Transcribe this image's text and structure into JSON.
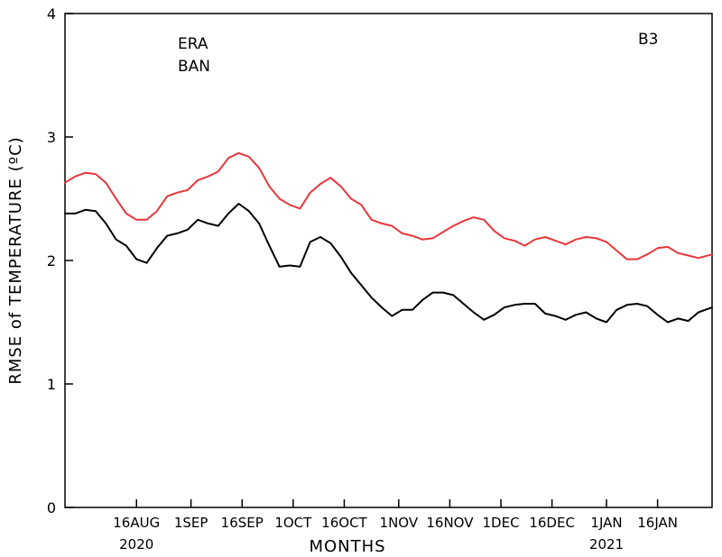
{
  "chart_data": {
    "type": "line",
    "xlabel": "MONTHS",
    "ylabel": "RMSE of TEMPERATURE (ºC)",
    "panel_label": "B3",
    "ylim": [
      0,
      4
    ],
    "yticks": [
      0,
      1,
      2,
      3,
      4
    ],
    "xlim": [
      "2020-07-26",
      "2021-02-01"
    ],
    "xticks": [
      {
        "date": "2020-08-16",
        "label": "16AUG",
        "sublabel": "2020"
      },
      {
        "date": "2020-09-01",
        "label": "1SEP",
        "sublabel": ""
      },
      {
        "date": "2020-09-16",
        "label": "16SEP",
        "sublabel": ""
      },
      {
        "date": "2020-10-01",
        "label": "1OCT",
        "sublabel": ""
      },
      {
        "date": "2020-10-16",
        "label": "16OCT",
        "sublabel": ""
      },
      {
        "date": "2020-11-01",
        "label": "1NOV",
        "sublabel": ""
      },
      {
        "date": "2020-11-16",
        "label": "16NOV",
        "sublabel": ""
      },
      {
        "date": "2020-12-01",
        "label": "1DEC",
        "sublabel": ""
      },
      {
        "date": "2020-12-16",
        "label": "16DEC",
        "sublabel": ""
      },
      {
        "date": "2021-01-01",
        "label": "1JAN",
        "sublabel": "2021"
      },
      {
        "date": "2021-01-16",
        "label": "16JAN",
        "sublabel": ""
      }
    ],
    "grid": false,
    "legend_position": "top-left",
    "series": [
      {
        "name": "ERA",
        "color": "#000000",
        "x": [
          "2020-07-26",
          "2020-07-29",
          "2020-08-01",
          "2020-08-04",
          "2020-08-07",
          "2020-08-10",
          "2020-08-13",
          "2020-08-16",
          "2020-08-19",
          "2020-08-22",
          "2020-08-25",
          "2020-08-28",
          "2020-08-31",
          "2020-09-03",
          "2020-09-06",
          "2020-09-09",
          "2020-09-12",
          "2020-09-15",
          "2020-09-18",
          "2020-09-21",
          "2020-09-24",
          "2020-09-27",
          "2020-09-30",
          "2020-10-03",
          "2020-10-06",
          "2020-10-09",
          "2020-10-12",
          "2020-10-15",
          "2020-10-18",
          "2020-10-21",
          "2020-10-24",
          "2020-10-27",
          "2020-10-30",
          "2020-11-02",
          "2020-11-05",
          "2020-11-08",
          "2020-11-11",
          "2020-11-14",
          "2020-11-17",
          "2020-11-20",
          "2020-11-23",
          "2020-11-26",
          "2020-11-29",
          "2020-12-02",
          "2020-12-05",
          "2020-12-08",
          "2020-12-11",
          "2020-12-14",
          "2020-12-17",
          "2020-12-20",
          "2020-12-23",
          "2020-12-26",
          "2020-12-29",
          "2021-01-01",
          "2021-01-04",
          "2021-01-07",
          "2021-01-10",
          "2021-01-13",
          "2021-01-16",
          "2021-01-19",
          "2021-01-22",
          "2021-01-25",
          "2021-01-28",
          "2021-02-01"
        ],
        "values": [
          2.38,
          2.38,
          2.41,
          2.4,
          2.3,
          2.17,
          2.12,
          2.01,
          1.98,
          2.1,
          2.2,
          2.22,
          2.25,
          2.33,
          2.3,
          2.28,
          2.38,
          2.46,
          2.4,
          2.3,
          2.12,
          1.95,
          1.96,
          1.95,
          2.15,
          2.19,
          2.14,
          2.03,
          1.9,
          1.8,
          1.7,
          1.62,
          1.55,
          1.6,
          1.6,
          1.68,
          1.74,
          1.74,
          1.72,
          1.65,
          1.58,
          1.52,
          1.56,
          1.62,
          1.64,
          1.65,
          1.65,
          1.57,
          1.55,
          1.52,
          1.56,
          1.58,
          1.53,
          1.5,
          1.6,
          1.64,
          1.65,
          1.63,
          1.56,
          1.5,
          1.53,
          1.51,
          1.58,
          1.62
        ]
      },
      {
        "name": "BAN",
        "color": "#e8363a",
        "x": [
          "2020-07-26",
          "2020-07-29",
          "2020-08-01",
          "2020-08-04",
          "2020-08-07",
          "2020-08-10",
          "2020-08-13",
          "2020-08-16",
          "2020-08-19",
          "2020-08-22",
          "2020-08-25",
          "2020-08-28",
          "2020-08-31",
          "2020-09-03",
          "2020-09-06",
          "2020-09-09",
          "2020-09-12",
          "2020-09-15",
          "2020-09-18",
          "2020-09-21",
          "2020-09-24",
          "2020-09-27",
          "2020-09-30",
          "2020-10-03",
          "2020-10-06",
          "2020-10-09",
          "2020-10-12",
          "2020-10-15",
          "2020-10-18",
          "2020-10-21",
          "2020-10-24",
          "2020-10-27",
          "2020-10-30",
          "2020-11-02",
          "2020-11-05",
          "2020-11-08",
          "2020-11-11",
          "2020-11-14",
          "2020-11-17",
          "2020-11-20",
          "2020-11-23",
          "2020-11-26",
          "2020-11-29",
          "2020-12-02",
          "2020-12-05",
          "2020-12-08",
          "2020-12-11",
          "2020-12-14",
          "2020-12-17",
          "2020-12-20",
          "2020-12-23",
          "2020-12-26",
          "2020-12-29",
          "2021-01-01",
          "2021-01-04",
          "2021-01-07",
          "2021-01-10",
          "2021-01-13",
          "2021-01-16",
          "2021-01-19",
          "2021-01-22",
          "2021-01-25",
          "2021-01-28",
          "2021-02-01"
        ],
        "values": [
          2.63,
          2.68,
          2.71,
          2.7,
          2.63,
          2.5,
          2.38,
          2.33,
          2.33,
          2.4,
          2.52,
          2.55,
          2.57,
          2.65,
          2.68,
          2.72,
          2.83,
          2.87,
          2.84,
          2.75,
          2.6,
          2.5,
          2.45,
          2.42,
          2.55,
          2.62,
          2.67,
          2.6,
          2.5,
          2.45,
          2.33,
          2.3,
          2.28,
          2.22,
          2.2,
          2.17,
          2.18,
          2.23,
          2.28,
          2.32,
          2.35,
          2.33,
          2.24,
          2.18,
          2.16,
          2.12,
          2.17,
          2.19,
          2.16,
          2.13,
          2.17,
          2.19,
          2.18,
          2.15,
          2.08,
          2.01,
          2.01,
          2.05,
          2.1,
          2.11,
          2.06,
          2.04,
          2.02,
          2.05
        ]
      }
    ]
  }
}
